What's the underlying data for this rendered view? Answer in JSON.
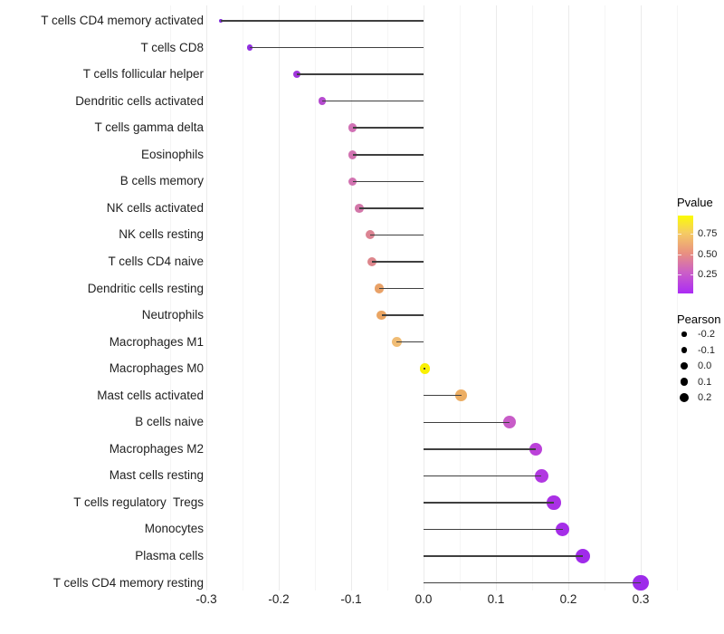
{
  "chart_data": {
    "type": "scatter",
    "subtype": "lollipop",
    "title": "",
    "xlabel": "",
    "ylabel": "",
    "xlim": [
      -0.35,
      0.35
    ],
    "x_major_tick_labels": [
      "-0.3",
      "-0.2",
      "-0.1",
      "0.0",
      "0.1",
      "0.2",
      "0.3"
    ],
    "x_major_tick_values": [
      -0.3,
      -0.2,
      -0.1,
      0.0,
      0.1,
      0.2,
      0.3
    ],
    "x_minor_tick_values": [
      -0.35,
      -0.25,
      -0.15,
      -0.05,
      0.05,
      0.15,
      0.25,
      0.35
    ],
    "grid": "vertical major and minor gridlines, light gray on white, no axis line",
    "segment_color": "#3f3f3f",
    "rows": [
      {
        "label": "T cells CD4 memory activated",
        "pearson": -0.28,
        "dot_color": "#7f2bda",
        "dot_radius": 2.0
      },
      {
        "label": "T cells CD8",
        "pearson": -0.24,
        "dot_color": "#9130e0",
        "dot_radius": 3.2
      },
      {
        "label": "T cells follicular helper",
        "pearson": -0.175,
        "dot_color": "#a136dc",
        "dot_radius": 4.1
      },
      {
        "label": "Dendritic cells activated",
        "pearson": -0.14,
        "dot_color": "#b54bcf",
        "dot_radius": 4.4
      },
      {
        "label": "T cells gamma delta",
        "pearson": -0.098,
        "dot_color": "#d171b5",
        "dot_radius": 4.8
      },
      {
        "label": "Eosinophils",
        "pearson": -0.098,
        "dot_color": "#d273b1",
        "dot_radius": 4.8
      },
      {
        "label": "B cells memory",
        "pearson": -0.098,
        "dot_color": "#d273b1",
        "dot_radius": 4.8
      },
      {
        "label": "NK cells activated",
        "pearson": -0.089,
        "dot_color": "#d377a9",
        "dot_radius": 4.9
      },
      {
        "label": "NK cells resting",
        "pearson": -0.074,
        "dot_color": "#dc8493",
        "dot_radius": 5.0
      },
      {
        "label": "T cells CD4 naive",
        "pearson": -0.071,
        "dot_color": "#dd868c",
        "dot_radius": 5.0
      },
      {
        "label": "Dendritic cells resting",
        "pearson": -0.061,
        "dot_color": "#e9a268",
        "dot_radius": 5.2
      },
      {
        "label": "Neutrophils",
        "pearson": -0.058,
        "dot_color": "#eaa563",
        "dot_radius": 5.2
      },
      {
        "label": "Macrophages M1",
        "pearson": -0.037,
        "dot_color": "#f0bc74",
        "dot_radius": 5.5
      },
      {
        "label": "Macrophages M0",
        "pearson": 0.002,
        "dot_color": "#f9f003",
        "dot_radius": 5.9
      },
      {
        "label": "Mast cells activated",
        "pearson": 0.052,
        "dot_color": "#ecae64",
        "dot_radius": 6.3
      },
      {
        "label": "B cells naive",
        "pearson": 0.119,
        "dot_color": "#c85cc8",
        "dot_radius": 7.0
      },
      {
        "label": "Macrophages M2",
        "pearson": 0.155,
        "dot_color": "#bb41d9",
        "dot_radius": 7.3
      },
      {
        "label": "Mast cells resting",
        "pearson": 0.163,
        "dot_color": "#b138e1",
        "dot_radius": 7.5
      },
      {
        "label": "T cells regulatory  Tregs",
        "pearson": 0.18,
        "dot_color": "#aa30e5",
        "dot_radius": 7.7
      },
      {
        "label": "Monocytes",
        "pearson": 0.192,
        "dot_color": "#a52ee8",
        "dot_radius": 7.8
      },
      {
        "label": "Plasma cells",
        "pearson": 0.22,
        "dot_color": "#a02bea",
        "dot_radius": 8.2
      },
      {
        "label": "T cells CD4 memory resting",
        "pearson": 0.3,
        "dot_color": "#9d2bea",
        "dot_radius": 8.9
      }
    ],
    "legends": {
      "pvalue": {
        "title": "Pvalue",
        "tick_labels": [
          "0.75",
          "0.50",
          "0.25"
        ],
        "tick_fractions_from_top": [
          0.233,
          0.5,
          0.756
        ],
        "gradient_stops": [
          {
            "pos": 0.0,
            "color": "#ab2bf5"
          },
          {
            "pos": 0.27,
            "color": "#cb5fc7"
          },
          {
            "pos": 0.52,
            "color": "#e99180"
          },
          {
            "pos": 0.78,
            "color": "#f5cc63"
          },
          {
            "pos": 1.0,
            "color": "#fbfb04"
          }
        ]
      },
      "pearson": {
        "title": "Pearson",
        "entries": [
          {
            "label": "-0.2",
            "radius": 2.6
          },
          {
            "label": "-0.1",
            "radius": 3.2
          },
          {
            "label": "0.0",
            "radius": 3.9
          },
          {
            "label": "0.1",
            "radius": 4.4
          },
          {
            "label": "0.2",
            "radius": 5.0
          }
        ]
      }
    }
  }
}
